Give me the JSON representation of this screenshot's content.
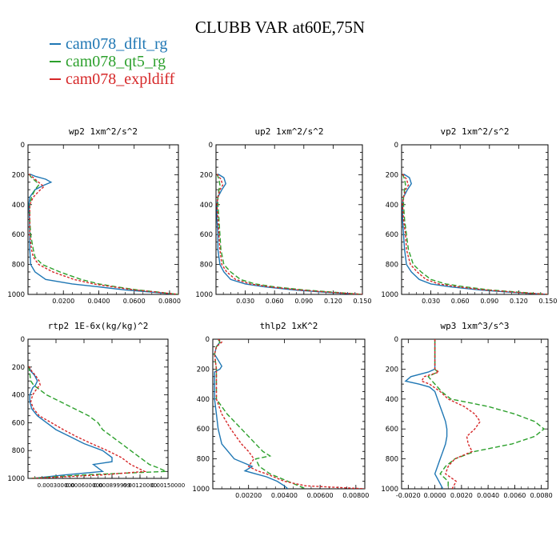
{
  "title": "CLUBB VAR at60E,75N",
  "legend": [
    {
      "label": "cam078_dflt_rg",
      "color": "#1f77b4"
    },
    {
      "label": "cam078_qt5_rg",
      "color": "#2ca02c"
    },
    {
      "label": "cam078_expldiff",
      "color": "#d62728"
    }
  ],
  "chart_data": [
    {
      "type": "line",
      "title": "wp2  1xm^2/s^2",
      "xlim": [
        0,
        0.085
      ],
      "ylim": [
        0,
        1000
      ],
      "y_inverted": true,
      "xticks": [
        "0.0200",
        "0.0400",
        "0.0600",
        "0.0800"
      ],
      "xtick_values": [
        0.02,
        0.04,
        0.06,
        0.08
      ],
      "yticks": [
        "0",
        "200",
        "400",
        "600",
        "800",
        "1000"
      ],
      "series": [
        {
          "name": "cam078_dflt_rg",
          "y": [
            195,
            210,
            230,
            250,
            270,
            300,
            350,
            400,
            500,
            600,
            700,
            800,
            850,
            900,
            930,
            950,
            970,
            985,
            1000
          ],
          "x": [
            0.001,
            0.004,
            0.01,
            0.013,
            0.009,
            0.004,
            0.001,
            0.0005,
            0.0008,
            0.001,
            0.001,
            0.0015,
            0.004,
            0.01,
            0.025,
            0.04,
            0.055,
            0.07,
            0.085
          ]
        },
        {
          "name": "cam078_qt5_rg",
          "y": [
            195,
            220,
            250,
            270,
            300,
            350,
            400,
            500,
            600,
            700,
            750,
            800,
            850,
            900,
            930,
            950,
            970,
            985,
            1000
          ],
          "x": [
            0.0005,
            0.002,
            0.005,
            0.006,
            0.004,
            0.002,
            0.001,
            0.001,
            0.0015,
            0.003,
            0.004,
            0.008,
            0.018,
            0.03,
            0.04,
            0.05,
            0.062,
            0.074,
            0.085
          ]
        },
        {
          "name": "cam078_expldiff",
          "y": [
            195,
            220,
            250,
            280,
            300,
            350,
            400,
            500,
            600,
            700,
            750,
            800,
            850,
            900,
            930,
            950,
            970,
            985,
            1000
          ],
          "x": [
            0.0005,
            0.003,
            0.006,
            0.009,
            0.007,
            0.003,
            0.001,
            0.001,
            0.001,
            0.002,
            0.003,
            0.006,
            0.014,
            0.026,
            0.037,
            0.048,
            0.06,
            0.073,
            0.085
          ]
        }
      ]
    },
    {
      "type": "line",
      "title": "up2  1xm^2/s^2",
      "xlim": [
        0,
        0.15
      ],
      "ylim": [
        0,
        1000
      ],
      "y_inverted": true,
      "xticks": [
        "0.030",
        "0.060",
        "0.090",
        "0.120",
        "0.150"
      ],
      "xtick_values": [
        0.03,
        0.06,
        0.09,
        0.12,
        0.15
      ],
      "yticks": [
        "0",
        "200",
        "400",
        "600",
        "800",
        "1000"
      ],
      "series": [
        {
          "name": "cam078_dflt_rg",
          "y": [
            195,
            220,
            260,
            300,
            350,
            400,
            500,
            600,
            700,
            800,
            850,
            900,
            930,
            950,
            970,
            985,
            1000
          ],
          "x": [
            0.002,
            0.008,
            0.01,
            0.006,
            0.002,
            0.001,
            0.001,
            0.002,
            0.002,
            0.004,
            0.008,
            0.015,
            0.03,
            0.05,
            0.08,
            0.11,
            0.15
          ]
        },
        {
          "name": "cam078_qt5_rg",
          "y": [
            195,
            230,
            270,
            300,
            350,
            400,
            500,
            600,
            700,
            800,
            850,
            900,
            930,
            950,
            970,
            985,
            1000
          ],
          "x": [
            0.001,
            0.003,
            0.004,
            0.003,
            0.002,
            0.002,
            0.003,
            0.004,
            0.005,
            0.008,
            0.015,
            0.025,
            0.04,
            0.06,
            0.09,
            0.12,
            0.15
          ]
        },
        {
          "name": "cam078_expldiff",
          "y": [
            195,
            230,
            270,
            300,
            350,
            400,
            500,
            600,
            700,
            800,
            850,
            900,
            930,
            950,
            970,
            985,
            1000
          ],
          "x": [
            0.001,
            0.005,
            0.007,
            0.004,
            0.002,
            0.001,
            0.002,
            0.003,
            0.004,
            0.006,
            0.011,
            0.02,
            0.035,
            0.055,
            0.085,
            0.115,
            0.15
          ]
        }
      ]
    },
    {
      "type": "line",
      "title": "vp2  1xm^2/s^2",
      "xlim": [
        0,
        0.15
      ],
      "ylim": [
        0,
        1000
      ],
      "y_inverted": true,
      "xticks": [
        "0.030",
        "0.060",
        "0.090",
        "0.120",
        "0.150"
      ],
      "xtick_values": [
        0.03,
        0.06,
        0.09,
        0.12,
        0.15
      ],
      "yticks": [
        "0",
        "200",
        "400",
        "600",
        "800",
        "1000"
      ],
      "series": [
        {
          "name": "cam078_dflt_rg",
          "y": [
            195,
            220,
            260,
            300,
            350,
            400,
            500,
            600,
            700,
            800,
            850,
            900,
            930,
            950,
            970,
            985,
            1000
          ],
          "x": [
            0.002,
            0.008,
            0.01,
            0.006,
            0.002,
            0.001,
            0.001,
            0.002,
            0.003,
            0.005,
            0.01,
            0.018,
            0.03,
            0.05,
            0.08,
            0.11,
            0.15
          ]
        },
        {
          "name": "cam078_qt5_rg",
          "y": [
            195,
            230,
            270,
            300,
            350,
            400,
            500,
            600,
            700,
            800,
            850,
            900,
            930,
            950,
            970,
            985,
            1000
          ],
          "x": [
            0.001,
            0.003,
            0.004,
            0.003,
            0.002,
            0.002,
            0.003,
            0.005,
            0.007,
            0.012,
            0.02,
            0.03,
            0.045,
            0.065,
            0.09,
            0.12,
            0.15
          ]
        },
        {
          "name": "cam078_expldiff",
          "y": [
            195,
            230,
            270,
            300,
            350,
            400,
            500,
            600,
            700,
            800,
            850,
            900,
            930,
            950,
            970,
            985,
            1000
          ],
          "x": [
            0.001,
            0.005,
            0.007,
            0.004,
            0.002,
            0.001,
            0.002,
            0.004,
            0.005,
            0.009,
            0.016,
            0.025,
            0.038,
            0.058,
            0.085,
            0.115,
            0.15
          ]
        }
      ]
    },
    {
      "type": "line",
      "title": "rtp2  1E-6x(kg/kg)^2",
      "xlim": [
        0,
        0.0015
      ],
      "ylim": [
        0,
        1000
      ],
      "y_inverted": true,
      "xticks": [
        "0.000300000",
        "0.000600000",
        "0.000899999",
        "0.00120000",
        "0.00150000"
      ],
      "xtick_values": [
        0.0003,
        0.0006,
        0.0009,
        0.0012,
        0.0015
      ],
      "yticks": [
        "0",
        "200",
        "400",
        "600",
        "800",
        "1000"
      ],
      "series": [
        {
          "name": "cam078_dflt_rg",
          "y": [
            195,
            230,
            260,
            300,
            330,
            350,
            400,
            450,
            500,
            550,
            600,
            650,
            700,
            750,
            800,
            850,
            880,
            900,
            950,
            975,
            1000
          ],
          "x": [
            1e-05,
            3e-05,
            7e-05,
            0.0001,
            8e-05,
            5e-05,
            2e-05,
            2e-05,
            4e-05,
            0.0001,
            0.0002,
            0.0003,
            0.00045,
            0.0006,
            0.0008,
            0.0009,
            0.0009,
            0.0007,
            0.0008,
            0.0004,
            5e-05
          ]
        },
        {
          "name": "cam078_qt5_rg",
          "y": [
            195,
            250,
            300,
            330,
            350,
            400,
            450,
            500,
            550,
            600,
            650,
            700,
            750,
            800,
            850,
            900,
            925,
            950,
            975,
            1000
          ],
          "x": [
            1e-05,
            2e-05,
            3e-05,
            6e-05,
            0.0001,
            0.0002,
            0.00035,
            0.0005,
            0.00065,
            0.00075,
            0.0008,
            0.0009,
            0.001,
            0.0011,
            0.0012,
            0.0013,
            0.0014,
            0.00148,
            0.0006,
            2e-05
          ]
        },
        {
          "name": "cam078_expldiff",
          "y": [
            195,
            230,
            260,
            300,
            330,
            350,
            400,
            450,
            500,
            550,
            600,
            650,
            700,
            750,
            800,
            850,
            900,
            950,
            975,
            1000
          ],
          "x": [
            1e-05,
            4e-05,
            8e-05,
            0.00012,
            0.00013,
            0.0001,
            5e-05,
            3e-05,
            6e-05,
            0.00012,
            0.00025,
            0.00038,
            0.00052,
            0.00068,
            0.00085,
            0.001,
            0.0011,
            0.00125,
            0.0008,
            3e-05
          ]
        }
      ]
    },
    {
      "type": "line",
      "title": "thlp2  1xK^2",
      "xlim": [
        0,
        0.0085
      ],
      "ylim": [
        0,
        1000
      ],
      "y_inverted": true,
      "xticks": [
        "0.00200",
        "0.00400",
        "0.00600",
        "0.00800"
      ],
      "xtick_values": [
        0.002,
        0.004,
        0.006,
        0.008
      ],
      "yticks": [
        "0",
        "200",
        "400",
        "600",
        "800",
        "1000"
      ],
      "series": [
        {
          "name": "cam078_dflt_rg",
          "y": [
            0,
            20,
            50,
            100,
            180,
            200,
            220,
            300,
            400,
            500,
            600,
            700,
            800,
            850,
            880,
            900,
            920,
            950,
            980,
            1000
          ],
          "x": [
            0.0003,
            0.0004,
            0.0002,
            0.0001,
            0.0005,
            0.0004,
            0.0001,
            0.0001,
            0.0001,
            0.0002,
            0.0003,
            0.0005,
            0.0012,
            0.0022,
            0.0018,
            0.0024,
            0.003,
            0.0036,
            0.004,
            0.0042
          ]
        },
        {
          "name": "cam078_qt5_rg",
          "y": [
            0,
            20,
            50,
            100,
            200,
            300,
            400,
            500,
            600,
            700,
            750,
            780,
            800,
            850,
            900,
            950,
            980,
            1000
          ],
          "x": [
            0.0003,
            0.0004,
            0.0002,
            0.0001,
            0.0002,
            0.0002,
            0.0002,
            0.0008,
            0.0016,
            0.0024,
            0.0028,
            0.0032,
            0.0024,
            0.0026,
            0.0032,
            0.0042,
            0.0048,
            0.0052
          ]
        },
        {
          "name": "cam078_expldiff",
          "y": [
            0,
            20,
            50,
            100,
            200,
            300,
            400,
            500,
            600,
            700,
            750,
            800,
            850,
            880,
            900,
            950,
            980,
            1000
          ],
          "x": [
            0.0003,
            0.0005,
            0.0002,
            0.0001,
            0.0002,
            0.0002,
            0.0002,
            0.0005,
            0.001,
            0.0016,
            0.002,
            0.0023,
            0.002,
            0.0025,
            0.003,
            0.004,
            0.0052,
            0.0085
          ]
        }
      ]
    },
    {
      "type": "line",
      "title": "wp3  1xm^3/s^3",
      "xlim": [
        -0.0025,
        0.0085
      ],
      "ylim": [
        0,
        1000
      ],
      "y_inverted": true,
      "xticks": [
        "-0.0020",
        "0.0000",
        "0.0020",
        "0.0040",
        "0.0060",
        "0.0080"
      ],
      "xtick_values": [
        -0.002,
        0.0,
        0.002,
        0.004,
        0.006,
        0.008
      ],
      "yticks": [
        "0",
        "200",
        "400",
        "600",
        "800",
        "1000"
      ],
      "series": [
        {
          "name": "cam078_dflt_rg",
          "y": [
            0,
            100,
            200,
            220,
            250,
            280,
            300,
            320,
            350,
            400,
            450,
            500,
            550,
            600,
            650,
            700,
            750,
            800,
            850,
            900,
            950,
            1000
          ],
          "x": [
            0.0,
            0.0,
            0.0,
            -0.0005,
            -0.0018,
            -0.0022,
            -0.0012,
            -0.0004,
            0.0,
            0.0002,
            0.0004,
            0.0006,
            0.0008,
            0.0009,
            0.0009,
            0.0008,
            0.0006,
            0.0004,
            0.0002,
            0.0,
            0.0003,
            0.0006
          ]
        },
        {
          "name": "cam078_qt5_rg",
          "y": [
            0,
            100,
            200,
            220,
            250,
            280,
            300,
            350,
            400,
            450,
            500,
            550,
            600,
            650,
            700,
            750,
            800,
            850,
            900,
            950,
            1000
          ],
          "x": [
            0.0,
            0.0,
            0.0,
            0.0002,
            -0.0005,
            -0.0002,
            0.0,
            0.0005,
            0.0012,
            0.004,
            0.006,
            0.0075,
            0.0082,
            0.0075,
            0.0058,
            0.003,
            0.0015,
            0.0008,
            0.0004,
            0.001,
            0.001
          ]
        },
        {
          "name": "cam078_expldiff",
          "y": [
            0,
            100,
            200,
            220,
            250,
            280,
            300,
            350,
            400,
            450,
            500,
            550,
            600,
            650,
            700,
            750,
            800,
            850,
            900,
            950,
            1000
          ],
          "x": [
            0.0,
            0.0,
            0.0,
            0.0003,
            -0.0008,
            -0.001,
            -0.0004,
            0.0004,
            0.001,
            0.0022,
            0.003,
            0.0034,
            0.003,
            0.0024,
            0.0025,
            0.0028,
            0.0015,
            0.001,
            0.0008,
            0.0016,
            0.0013
          ]
        }
      ]
    }
  ]
}
